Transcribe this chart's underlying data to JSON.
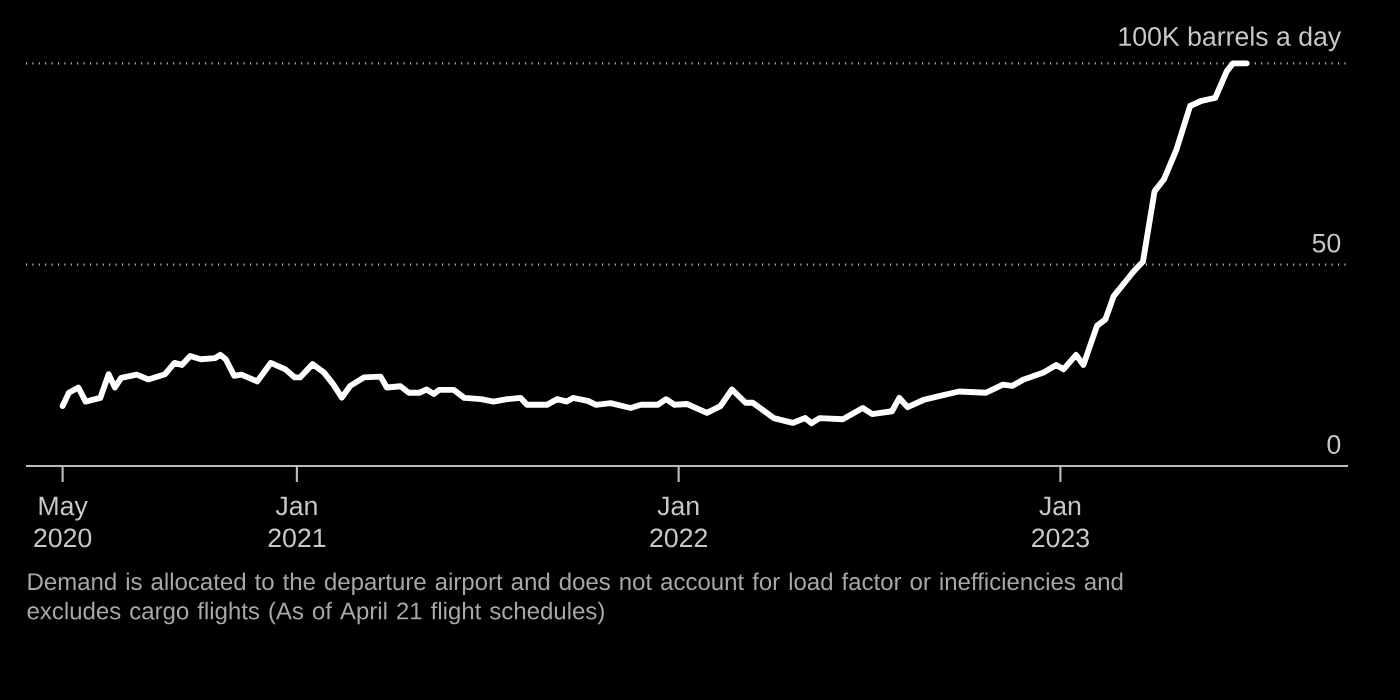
{
  "chart_data": {
    "type": "line",
    "x": [
      "2020-05-22",
      "2020-05-28",
      "2020-06-06",
      "2020-06-13",
      "2020-06-27",
      "2020-07-05",
      "2020-07-11",
      "2020-07-17",
      "2020-08-01",
      "2020-08-12",
      "2020-08-28",
      "2020-09-06",
      "2020-09-13",
      "2020-09-21",
      "2020-10-01",
      "2020-10-15",
      "2020-10-20",
      "2020-10-25",
      "2020-11-02",
      "2020-11-09",
      "2020-11-24",
      "2020-12-07",
      "2020-12-21",
      "2020-12-30",
      "2021-01-04",
      "2021-01-16",
      "2021-01-27",
      "2021-02-05",
      "2021-02-13",
      "2021-02-21",
      "2021-03-06",
      "2021-03-22",
      "2021-03-28",
      "2021-04-10",
      "2021-04-18",
      "2021-04-28",
      "2021-05-05",
      "2021-05-12",
      "2021-05-17",
      "2021-05-31",
      "2021-06-10",
      "2021-06-26",
      "2021-07-08",
      "2021-07-21",
      "2021-08-03",
      "2021-08-09",
      "2021-08-28",
      "2021-09-07",
      "2021-09-16",
      "2021-09-22",
      "2021-10-06",
      "2021-10-14",
      "2021-10-28",
      "2021-11-16",
      "2021-11-26",
      "2021-12-12",
      "2021-12-20",
      "2021-12-28",
      "2022-01-09",
      "2022-01-28",
      "2022-02-10",
      "2022-02-21",
      "2022-03-06",
      "2022-03-13",
      "2022-04-02",
      "2022-04-20",
      "2022-05-02",
      "2022-05-08",
      "2022-05-16",
      "2022-06-07",
      "2022-06-26",
      "2022-07-05",
      "2022-07-24",
      "2022-07-31",
      "2022-08-08",
      "2022-08-23",
      "2022-09-08",
      "2022-09-26",
      "2022-10-22",
      "2022-11-07",
      "2022-11-16",
      "2022-11-27",
      "2022-12-16",
      "2022-12-28",
      "2023-01-04",
      "2023-01-16",
      "2023-01-23",
      "2023-02-05",
      "2023-02-13",
      "2023-02-21",
      "2023-03-12",
      "2023-03-21",
      "2023-04-01",
      "2023-04-10",
      "2023-04-22",
      "2023-05-05",
      "2023-05-16",
      "2023-05-29",
      "2023-06-09",
      "2023-06-15",
      "2023-06-28"
    ],
    "values": [
      14.9,
      18.2,
      19.5,
      16.0,
      16.9,
      22.8,
      19.5,
      21.9,
      22.7,
      21.5,
      22.8,
      25.6,
      25.1,
      27.3,
      26.5,
      26.8,
      27.6,
      26.5,
      22.4,
      22.7,
      21.0,
      25.6,
      24.0,
      22.0,
      22.0,
      25.3,
      23.2,
      20.2,
      17.0,
      19.9,
      22.0,
      22.2,
      19.5,
      19.8,
      18.2,
      18.2,
      19.0,
      17.9,
      18.9,
      18.9,
      16.9,
      16.6,
      16.0,
      16.6,
      16.9,
      15.2,
      15.2,
      16.6,
      16.0,
      16.9,
      16.2,
      15.2,
      15.6,
      14.4,
      15.2,
      15.2,
      16.6,
      15.2,
      15.4,
      13.2,
      14.9,
      19.0,
      15.7,
      15.7,
      11.9,
      10.7,
      11.9,
      10.6,
      11.9,
      11.6,
      14.4,
      12.9,
      13.6,
      16.9,
      14.6,
      16.4,
      17.4,
      18.5,
      18.2,
      20.2,
      19.9,
      21.5,
      23.2,
      25.1,
      24.0,
      27.6,
      25.1,
      34.8,
      36.4,
      42.2,
      48.3,
      50.8,
      68.2,
      71.2,
      78.6,
      89.4,
      90.7,
      91.4,
      98.0,
      100.0,
      100.0
    ],
    "color": "#ffffff",
    "xlim": [
      "2020-04-17",
      "2023-10-03"
    ],
    "xticks": [
      {
        "value": "2020-05-22",
        "label": "May 2020"
      },
      {
        "value": "2021-01-01",
        "label": "Jan 2021"
      },
      {
        "value": "2022-01-01",
        "label": "Jan 2022"
      },
      {
        "value": "2023-01-01",
        "label": "Jan 2023"
      }
    ],
    "ylim": [
      0,
      100
    ],
    "yticks": [
      0,
      50,
      {
        "value": 100,
        "label": "100K barrels a day"
      }
    ],
    "grid": "y",
    "annotations": [
      "Demand is allocated to the departure airport and does not account for load factor or inefficiencies and excludes cargo flights (As of April 21 flight schedules)"
    ]
  }
}
